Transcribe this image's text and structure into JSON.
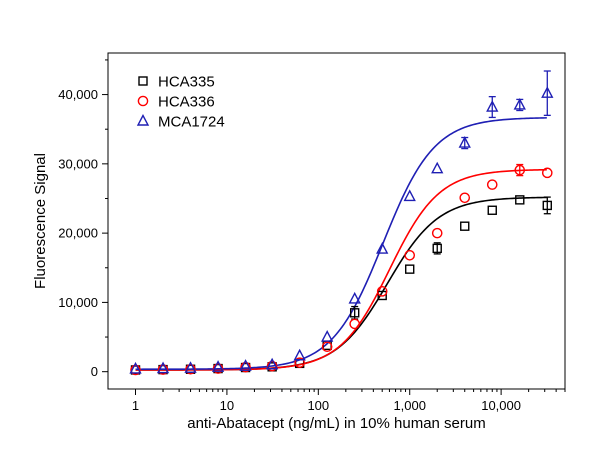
{
  "chart_data": {
    "type": "scatter",
    "title": "",
    "xlabel": "anti-Abatacept (ng/mL) in 10% human serum",
    "ylabel": "Fluorescence Signal",
    "xscale": "log",
    "xlim": [
      0.5,
      50000
    ],
    "ylim": [
      -2500,
      46000
    ],
    "xticks": [
      1,
      10,
      100,
      1000,
      10000
    ],
    "xtick_labels": [
      "1",
      "10",
      "100",
      "1,000",
      "10,000"
    ],
    "yticks": [
      0,
      10000,
      20000,
      30000,
      40000
    ],
    "ytick_labels": [
      "0",
      "10,000",
      "20,000",
      "30,000",
      "40,000"
    ],
    "legend_position": "top-left",
    "grid": false,
    "x": [
      1,
      2,
      4,
      8,
      16,
      31.25,
      62.5,
      125,
      250,
      500,
      1000,
      2000,
      4000,
      8000,
      16000,
      32000
    ],
    "series": [
      {
        "name": "HCA335",
        "marker": "square",
        "color": "#000000",
        "values": [
          250,
          300,
          350,
          450,
          600,
          700,
          1200,
          3800,
          8500,
          11000,
          14800,
          17800,
          21000,
          23300,
          24800,
          24000
        ],
        "errors": [
          100,
          100,
          100,
          100,
          150,
          150,
          250,
          400,
          900,
          500,
          600,
          800,
          500,
          400,
          400,
          1200
        ],
        "fit": {
          "bottom": 250,
          "top": 25200,
          "ec50": 570,
          "hill": 1.55
        }
      },
      {
        "name": "HCA336",
        "marker": "circle",
        "color": "#ff0000",
        "values": [
          250,
          300,
          350,
          450,
          650,
          800,
          1300,
          3600,
          6900,
          11600,
          16800,
          20000,
          25100,
          27000,
          29100,
          28700
        ],
        "errors": [
          100,
          100,
          100,
          100,
          150,
          150,
          250,
          300,
          400,
          500,
          500,
          500,
          500,
          500,
          800,
          500
        ],
        "fit": {
          "bottom": 250,
          "top": 29200,
          "ec50": 600,
          "hill": 1.6
        }
      },
      {
        "name": "MCA1724",
        "marker": "triangle",
        "color": "#1f1fb4",
        "values": [
          400,
          450,
          500,
          650,
          800,
          1000,
          2300,
          5000,
          10500,
          17700,
          25300,
          29300,
          33000,
          38200,
          38500,
          40200
        ],
        "errors": [
          100,
          100,
          100,
          100,
          150,
          150,
          300,
          400,
          700,
          500,
          500,
          600,
          800,
          1500,
          800,
          3200
        ],
        "fit": {
          "bottom": 350,
          "top": 36700,
          "ec50": 510,
          "hill": 1.55
        }
      }
    ]
  }
}
